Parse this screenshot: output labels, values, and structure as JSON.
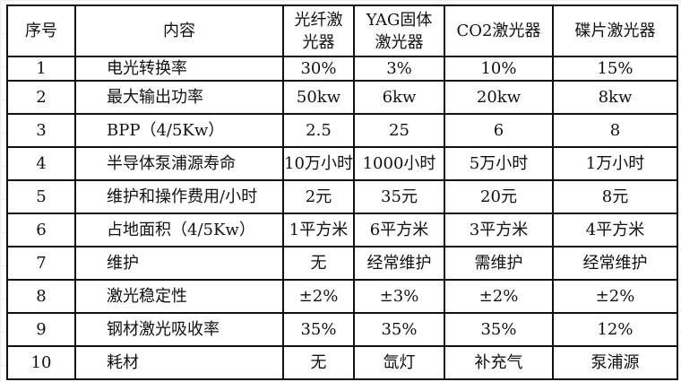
{
  "table": {
    "headers": [
      "序号",
      "内容",
      "光纤激光器",
      "YAG固体激光器",
      "CO2激光器",
      "碟片激光器"
    ],
    "rows": [
      [
        "1",
        "电光转换率",
        "30%",
        "3%",
        "10%",
        "15%"
      ],
      [
        "2",
        "最大输出功率",
        "50kw",
        "6kw",
        "20kw",
        "8kw"
      ],
      [
        "3",
        "BPP（4/5Kw）",
        "2.5",
        "25",
        "6",
        "8"
      ],
      [
        "4",
        "半导体泵浦源寿命",
        "10万小时",
        "1000小时",
        "5万小时",
        "1万小时"
      ],
      [
        "5",
        "维护和操作费用/小时",
        "2元",
        "35元",
        "20元",
        "8元"
      ],
      [
        "6",
        "占地面积（4/5Kw）",
        "1平方米",
        "6平方米",
        "3平方米",
        "4平方米"
      ],
      [
        "7",
        "维护",
        "无",
        "经常维护",
        "需维护",
        "经常维护"
      ],
      [
        "8",
        "激光稳定性",
        "±2%",
        "±3%",
        "±2%",
        "±2%"
      ],
      [
        "9",
        "钢材激光吸收率",
        "35%",
        "35%",
        "35%",
        "12%"
      ],
      [
        "10",
        "耗材",
        "无",
        "氙灯",
        "补充气",
        "泵浦源"
      ]
    ]
  }
}
